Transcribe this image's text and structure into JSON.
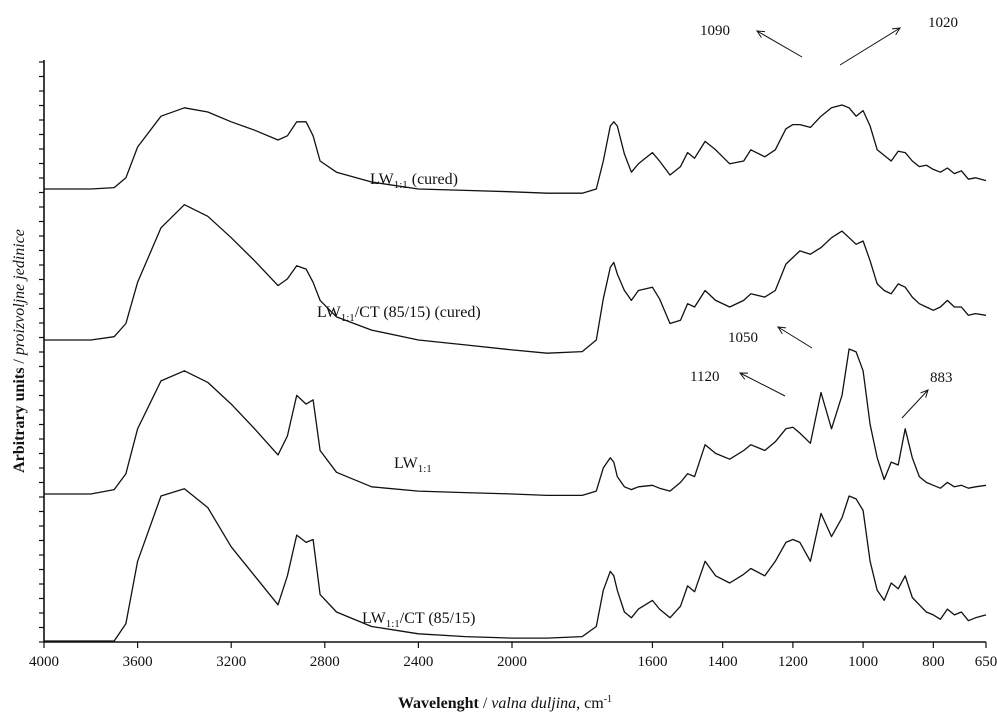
{
  "chart_data": {
    "type": "line",
    "xlabel": {
      "bold": "Wavelenght",
      "sep": " / ",
      "italic": "valna duljina",
      "unit": ", cm",
      "sup": "-1"
    },
    "ylabel": {
      "bold": "Arbitrary units",
      "sep": " / ",
      "italic": "proizvoljne jedinice"
    },
    "x_ticks": [
      4000,
      3600,
      3200,
      2800,
      2400,
      2000,
      1600,
      1400,
      1200,
      1000,
      800,
      650
    ],
    "x_axis_note": "reversed, piecewise linear (4000-2000 compressed, 2000-650 expanded)",
    "y_ticks_labeled": false,
    "grid": false,
    "legend": "none",
    "series": [
      {
        "name": "LW1:1 (cured)",
        "label": {
          "pre": "LW",
          "sub": "1:1",
          "post": " (cured)"
        },
        "x": [
          4000,
          3800,
          3700,
          3650,
          3600,
          3500,
          3400,
          3300,
          3200,
          3100,
          3000,
          2960,
          2920,
          2880,
          2850,
          2820,
          2750,
          2600,
          2400,
          2200,
          2000,
          1900,
          1800,
          1760,
          1740,
          1720,
          1710,
          1700,
          1680,
          1660,
          1640,
          1600,
          1580,
          1550,
          1520,
          1500,
          1480,
          1450,
          1420,
          1380,
          1340,
          1320,
          1280,
          1250,
          1220,
          1200,
          1180,
          1150,
          1120,
          1090,
          1060,
          1040,
          1020,
          1000,
          980,
          960,
          940,
          920,
          900,
          880,
          860,
          840,
          820,
          800,
          780,
          760,
          740,
          720,
          700,
          680,
          650
        ],
        "y": [
          0.1,
          0.1,
          0.11,
          0.18,
          0.4,
          0.62,
          0.68,
          0.65,
          0.58,
          0.52,
          0.45,
          0.48,
          0.58,
          0.58,
          0.48,
          0.3,
          0.22,
          0.15,
          0.1,
          0.09,
          0.08,
          0.07,
          0.07,
          0.1,
          0.3,
          0.55,
          0.58,
          0.55,
          0.35,
          0.22,
          0.28,
          0.36,
          0.3,
          0.2,
          0.26,
          0.36,
          0.32,
          0.44,
          0.38,
          0.28,
          0.3,
          0.38,
          0.33,
          0.38,
          0.53,
          0.56,
          0.56,
          0.54,
          0.62,
          0.68,
          0.7,
          0.68,
          0.62,
          0.66,
          0.55,
          0.38,
          0.34,
          0.3,
          0.37,
          0.36,
          0.3,
          0.26,
          0.27,
          0.24,
          0.22,
          0.25,
          0.21,
          0.23,
          0.17,
          0.18,
          0.16
        ]
      },
      {
        "name": "LW1:1/CT (85/15) (cured)",
        "label": {
          "pre": "LW",
          "sub": "1:1",
          "post": "/CT (85/15) (cured)"
        },
        "x": [
          4000,
          3800,
          3700,
          3650,
          3600,
          3500,
          3400,
          3300,
          3200,
          3100,
          3000,
          2960,
          2920,
          2880,
          2850,
          2820,
          2750,
          2600,
          2400,
          2200,
          2000,
          1900,
          1800,
          1760,
          1740,
          1720,
          1710,
          1700,
          1680,
          1660,
          1640,
          1600,
          1580,
          1550,
          1520,
          1500,
          1480,
          1450,
          1420,
          1380,
          1340,
          1320,
          1280,
          1250,
          1220,
          1200,
          1180,
          1150,
          1120,
          1090,
          1060,
          1040,
          1020,
          1000,
          980,
          960,
          940,
          920,
          900,
          880,
          860,
          840,
          820,
          800,
          780,
          760,
          740,
          720,
          700,
          680,
          650
        ],
        "y": [
          0.0,
          0.0,
          0.02,
          0.1,
          0.35,
          0.68,
          0.82,
          0.75,
          0.62,
          0.48,
          0.33,
          0.37,
          0.45,
          0.43,
          0.35,
          0.24,
          0.14,
          0.06,
          0.0,
          -0.03,
          -0.06,
          -0.08,
          -0.07,
          0.0,
          0.25,
          0.44,
          0.47,
          0.4,
          0.3,
          0.24,
          0.3,
          0.32,
          0.25,
          0.1,
          0.12,
          0.22,
          0.2,
          0.3,
          0.24,
          0.2,
          0.24,
          0.28,
          0.26,
          0.3,
          0.46,
          0.5,
          0.54,
          0.52,
          0.56,
          0.62,
          0.66,
          0.62,
          0.58,
          0.6,
          0.48,
          0.34,
          0.3,
          0.28,
          0.34,
          0.32,
          0.26,
          0.22,
          0.2,
          0.18,
          0.2,
          0.24,
          0.2,
          0.2,
          0.15,
          0.16,
          0.15
        ]
      },
      {
        "name": "LW1:1",
        "label": {
          "pre": "LW",
          "sub": "1:1",
          "post": ""
        },
        "x": [
          4000,
          3800,
          3700,
          3650,
          3600,
          3500,
          3400,
          3300,
          3200,
          3100,
          3000,
          2960,
          2920,
          2880,
          2850,
          2820,
          2750,
          2600,
          2400,
          2200,
          2000,
          1900,
          1800,
          1760,
          1740,
          1720,
          1710,
          1700,
          1680,
          1660,
          1640,
          1600,
          1580,
          1550,
          1520,
          1500,
          1480,
          1450,
          1420,
          1380,
          1340,
          1320,
          1280,
          1250,
          1220,
          1200,
          1180,
          1150,
          1120,
          1090,
          1060,
          1040,
          1020,
          1000,
          980,
          960,
          940,
          920,
          900,
          880,
          860,
          840,
          820,
          800,
          780,
          760,
          740,
          720,
          700,
          680,
          650
        ],
        "y": [
          0.0,
          0.0,
          0.03,
          0.14,
          0.45,
          0.78,
          0.85,
          0.77,
          0.62,
          0.45,
          0.27,
          0.4,
          0.68,
          0.62,
          0.65,
          0.3,
          0.15,
          0.05,
          0.02,
          0.01,
          0.0,
          -0.01,
          -0.01,
          0.02,
          0.18,
          0.25,
          0.22,
          0.12,
          0.05,
          0.03,
          0.05,
          0.06,
          0.04,
          0.02,
          0.08,
          0.14,
          0.12,
          0.34,
          0.28,
          0.24,
          0.3,
          0.34,
          0.3,
          0.36,
          0.45,
          0.46,
          0.42,
          0.35,
          0.7,
          0.45,
          0.68,
          1.0,
          0.98,
          0.85,
          0.48,
          0.25,
          0.1,
          0.22,
          0.2,
          0.45,
          0.25,
          0.12,
          0.08,
          0.06,
          0.04,
          0.08,
          0.05,
          0.06,
          0.04,
          0.05,
          0.06
        ]
      },
      {
        "name": "LW1:1/CT (85/15)",
        "label": {
          "pre": "LW",
          "sub": "1:1",
          "post": "/CT (85/15)"
        },
        "x": [
          4000,
          3800,
          3700,
          3650,
          3600,
          3500,
          3400,
          3300,
          3200,
          3100,
          3000,
          2960,
          2920,
          2880,
          2850,
          2820,
          2750,
          2600,
          2400,
          2200,
          2000,
          1900,
          1800,
          1760,
          1740,
          1720,
          1710,
          1700,
          1680,
          1660,
          1640,
          1600,
          1580,
          1550,
          1520,
          1500,
          1480,
          1450,
          1420,
          1380,
          1340,
          1320,
          1280,
          1250,
          1220,
          1200,
          1180,
          1150,
          1120,
          1090,
          1060,
          1040,
          1020,
          1000,
          980,
          960,
          940,
          920,
          900,
          880,
          860,
          840,
          820,
          800,
          780,
          760,
          740,
          720,
          700,
          680,
          650
        ],
        "y": [
          0.0,
          0.0,
          0.0,
          0.12,
          0.55,
          1.0,
          1.05,
          0.92,
          0.65,
          0.45,
          0.25,
          0.45,
          0.73,
          0.68,
          0.7,
          0.32,
          0.2,
          0.1,
          0.05,
          0.03,
          0.02,
          0.02,
          0.03,
          0.1,
          0.35,
          0.48,
          0.45,
          0.35,
          0.2,
          0.16,
          0.22,
          0.28,
          0.22,
          0.16,
          0.24,
          0.38,
          0.34,
          0.55,
          0.45,
          0.4,
          0.46,
          0.5,
          0.45,
          0.55,
          0.68,
          0.7,
          0.68,
          0.55,
          0.88,
          0.72,
          0.85,
          1.0,
          0.98,
          0.9,
          0.55,
          0.35,
          0.28,
          0.4,
          0.36,
          0.45,
          0.3,
          0.25,
          0.2,
          0.18,
          0.15,
          0.22,
          0.18,
          0.2,
          0.14,
          0.16,
          0.18
        ]
      }
    ],
    "annotations": [
      {
        "text": "1090",
        "x": 1090
      },
      {
        "text": "1020",
        "x": 1020
      },
      {
        "text": "1050",
        "x": 1050
      },
      {
        "text": "1120",
        "x": 1120
      },
      {
        "text": "883",
        "x": 883
      }
    ]
  }
}
